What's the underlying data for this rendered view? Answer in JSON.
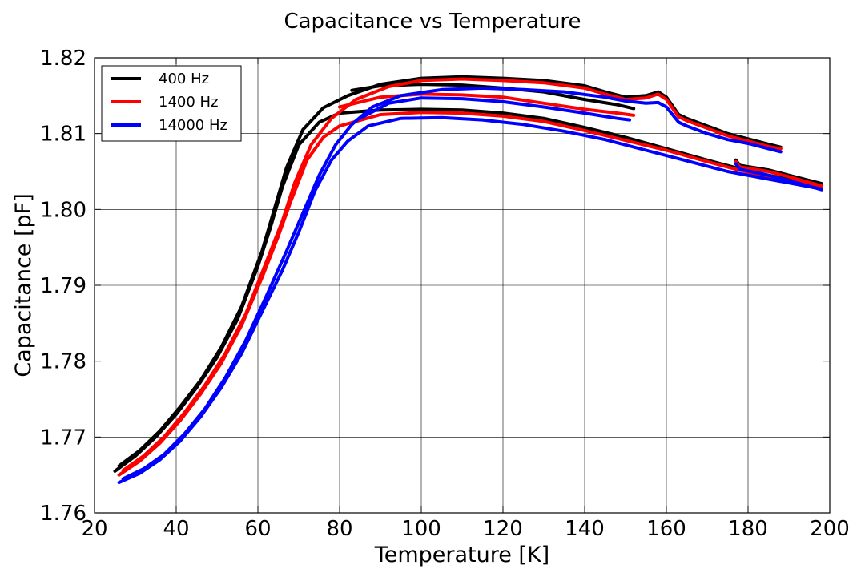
{
  "chart_data": {
    "type": "line",
    "title": "Capacitance vs Temperature",
    "xlabel": "Temperature [K]",
    "ylabel": "Capacitance [pF]",
    "xlim": [
      20,
      200
    ],
    "ylim": [
      1.76,
      1.82
    ],
    "x_ticks": [
      20,
      40,
      60,
      80,
      100,
      120,
      140,
      160,
      180,
      200
    ],
    "y_ticks": [
      1.76,
      1.77,
      1.78,
      1.79,
      1.8,
      1.81,
      1.82
    ],
    "x_tick_labels": [
      "20",
      "40",
      "60",
      "80",
      "100",
      "120",
      "140",
      "160",
      "180",
      "200"
    ],
    "y_tick_labels": [
      "1.76",
      "1.77",
      "1.78",
      "1.79",
      "1.80",
      "1.81",
      "1.82"
    ],
    "grid": true,
    "legend_position": "top-left",
    "series": [
      {
        "name": "400 Hz",
        "color": "#000000",
        "curves": [
          [
            [
              25,
              1.7655
            ],
            [
              30,
              1.7675
            ],
            [
              35,
              1.77
            ],
            [
              40,
              1.773
            ],
            [
              45,
              1.7765
            ],
            [
              50,
              1.7805
            ],
            [
              55,
              1.7855
            ],
            [
              60,
              1.7925
            ],
            [
              63,
              1.7975
            ],
            [
              66,
              1.803
            ],
            [
              70,
              1.8085
            ],
            [
              75,
              1.8115
            ],
            [
              80,
              1.8127
            ],
            [
              90,
              1.8131
            ],
            [
              100,
              1.8132
            ],
            [
              110,
              1.8131
            ],
            [
              120,
              1.8127
            ],
            [
              130,
              1.812
            ],
            [
              140,
              1.8108
            ],
            [
              150,
              1.8095
            ],
            [
              160,
              1.808
            ],
            [
              170,
              1.8065
            ],
            [
              177,
              1.8055
            ],
            [
              185,
              1.8045
            ],
            [
              190,
              1.804
            ],
            [
              198,
              1.8032
            ]
          ],
          [
            [
              26,
              1.7662
            ],
            [
              31,
              1.7682
            ],
            [
              36,
              1.7708
            ],
            [
              41,
              1.774
            ],
            [
              46,
              1.7775
            ],
            [
              51,
              1.7818
            ],
            [
              56,
              1.7872
            ],
            [
              61,
              1.7945
            ],
            [
              64,
              1.8
            ],
            [
              67,
              1.8055
            ],
            [
              71,
              1.8105
            ],
            [
              76,
              1.8134
            ],
            [
              82,
              1.815
            ],
            [
              90,
              1.8165
            ],
            [
              100,
              1.8173
            ],
            [
              110,
              1.8175
            ],
            [
              120,
              1.8173
            ],
            [
              130,
              1.817
            ],
            [
              140,
              1.8163
            ],
            [
              145,
              1.8155
            ],
            [
              150,
              1.8148
            ],
            [
              155,
              1.815
            ],
            [
              158,
              1.8155
            ],
            [
              160,
              1.8148
            ],
            [
              163,
              1.8125
            ],
            [
              165,
              1.812
            ],
            [
              170,
              1.811
            ],
            [
              175,
              1.81
            ],
            [
              180,
              1.8093
            ],
            [
              185,
              1.8086
            ],
            [
              188,
              1.8082
            ]
          ],
          [
            [
              83,
              1.8157
            ],
            [
              90,
              1.8163
            ],
            [
              100,
              1.8165
            ],
            [
              110,
              1.8164
            ],
            [
              120,
              1.816
            ],
            [
              130,
              1.8155
            ],
            [
              140,
              1.8145
            ],
            [
              148,
              1.8138
            ],
            [
              152,
              1.8133
            ]
          ],
          [
            [
              177,
              1.8065
            ],
            [
              178,
              1.8058
            ],
            [
              185,
              1.8052
            ],
            [
              190,
              1.8045
            ],
            [
              198,
              1.8034
            ]
          ]
        ]
      },
      {
        "name": "1400 Hz",
        "color": "#ff0000",
        "curves": [
          [
            [
              26,
              1.765
            ],
            [
              31,
              1.7668
            ],
            [
              36,
              1.7692
            ],
            [
              41,
              1.7722
            ],
            [
              46,
              1.7757
            ],
            [
              51,
              1.7797
            ],
            [
              56,
              1.7847
            ],
            [
              61,
              1.791
            ],
            [
              65,
              1.7965
            ],
            [
              68,
              1.801
            ],
            [
              72,
              1.8065
            ],
            [
              76,
              1.8095
            ],
            [
              80,
              1.811
            ],
            [
              90,
              1.8125
            ],
            [
              100,
              1.8128
            ],
            [
              110,
              1.8127
            ],
            [
              120,
              1.8123
            ],
            [
              130,
              1.8116
            ],
            [
              140,
              1.8104
            ],
            [
              150,
              1.8091
            ],
            [
              160,
              1.8078
            ],
            [
              170,
              1.8063
            ],
            [
              177,
              1.8053
            ],
            [
              185,
              1.8043
            ],
            [
              190,
              1.8038
            ],
            [
              198,
              1.803
            ]
          ],
          [
            [
              27,
              1.7656
            ],
            [
              32,
              1.7675
            ],
            [
              37,
              1.77
            ],
            [
              42,
              1.7732
            ],
            [
              47,
              1.7768
            ],
            [
              52,
              1.781
            ],
            [
              57,
              1.7862
            ],
            [
              62,
              1.793
            ],
            [
              66,
              1.7985
            ],
            [
              69,
              1.8035
            ],
            [
              73,
              1.8085
            ],
            [
              78,
              1.812
            ],
            [
              84,
              1.8145
            ],
            [
              92,
              1.8162
            ],
            [
              100,
              1.817
            ],
            [
              110,
              1.8172
            ],
            [
              120,
              1.817
            ],
            [
              130,
              1.8167
            ],
            [
              140,
              1.816
            ],
            [
              145,
              1.8152
            ],
            [
              150,
              1.8145
            ],
            [
              155,
              1.8147
            ],
            [
              158,
              1.8152
            ],
            [
              160,
              1.8145
            ],
            [
              163,
              1.8122
            ],
            [
              165,
              1.8117
            ],
            [
              170,
              1.8107
            ],
            [
              175,
              1.8097
            ],
            [
              180,
              1.809
            ],
            [
              185,
              1.8083
            ],
            [
              188,
              1.808
            ]
          ],
          [
            [
              80,
              1.8135
            ],
            [
              90,
              1.8148
            ],
            [
              100,
              1.8152
            ],
            [
              110,
              1.8151
            ],
            [
              120,
              1.8148
            ],
            [
              130,
              1.814
            ],
            [
              140,
              1.8132
            ],
            [
              148,
              1.8127
            ],
            [
              152,
              1.8124
            ]
          ],
          [
            [
              177,
              1.8063
            ],
            [
              178,
              1.8056
            ],
            [
              185,
              1.805
            ],
            [
              190,
              1.8043
            ],
            [
              198,
              1.8031
            ]
          ]
        ]
      },
      {
        "name": "14000 Hz",
        "color": "#0000ff",
        "curves": [
          [
            [
              26,
              1.764
            ],
            [
              31,
              1.7652
            ],
            [
              36,
              1.767
            ],
            [
              41,
              1.7695
            ],
            [
              46,
              1.7727
            ],
            [
              51,
              1.7765
            ],
            [
              56,
              1.781
            ],
            [
              61,
              1.7865
            ],
            [
              66,
              1.792
            ],
            [
              70,
              1.797
            ],
            [
              74,
              1.8025
            ],
            [
              78,
              1.8065
            ],
            [
              82,
              1.809
            ],
            [
              87,
              1.811
            ],
            [
              95,
              1.812
            ],
            [
              105,
              1.8121
            ],
            [
              115,
              1.8118
            ],
            [
              125,
              1.8112
            ],
            [
              135,
              1.8103
            ],
            [
              145,
              1.8092
            ],
            [
              155,
              1.8078
            ],
            [
              165,
              1.8064
            ],
            [
              175,
              1.805
            ],
            [
              185,
              1.804
            ],
            [
              190,
              1.8035
            ],
            [
              198,
              1.8027
            ]
          ],
          [
            [
              27,
              1.7645
            ],
            [
              32,
              1.7658
            ],
            [
              37,
              1.7677
            ],
            [
              42,
              1.7704
            ],
            [
              47,
              1.7737
            ],
            [
              52,
              1.7778
            ],
            [
              57,
              1.7827
            ],
            [
              62,
              1.7885
            ],
            [
              67,
              1.7945
            ],
            [
              71,
              1.7995
            ],
            [
              75,
              1.8045
            ],
            [
              79,
              1.8085
            ],
            [
              83,
              1.8112
            ],
            [
              88,
              1.8135
            ],
            [
              95,
              1.815
            ],
            [
              105,
              1.8158
            ],
            [
              115,
              1.816
            ],
            [
              125,
              1.8158
            ],
            [
              135,
              1.8155
            ],
            [
              145,
              1.8148
            ],
            [
              150,
              1.8143
            ],
            [
              155,
              1.814
            ],
            [
              158,
              1.8141
            ],
            [
              160,
              1.8135
            ],
            [
              163,
              1.8115
            ],
            [
              165,
              1.811
            ],
            [
              170,
              1.81
            ],
            [
              175,
              1.8092
            ],
            [
              180,
              1.8087
            ],
            [
              185,
              1.808
            ],
            [
              188,
              1.8076
            ]
          ],
          [
            [
              85,
              1.812
            ],
            [
              92,
              1.814
            ],
            [
              100,
              1.8147
            ],
            [
              110,
              1.8146
            ],
            [
              120,
              1.8142
            ],
            [
              130,
              1.8135
            ],
            [
              140,
              1.8127
            ],
            [
              148,
              1.812
            ],
            [
              151,
              1.8118
            ]
          ],
          [
            [
              177,
              1.806
            ],
            [
              178,
              1.8053
            ],
            [
              185,
              1.8045
            ],
            [
              190,
              1.8038
            ],
            [
              198,
              1.8026
            ]
          ]
        ]
      }
    ]
  }
}
